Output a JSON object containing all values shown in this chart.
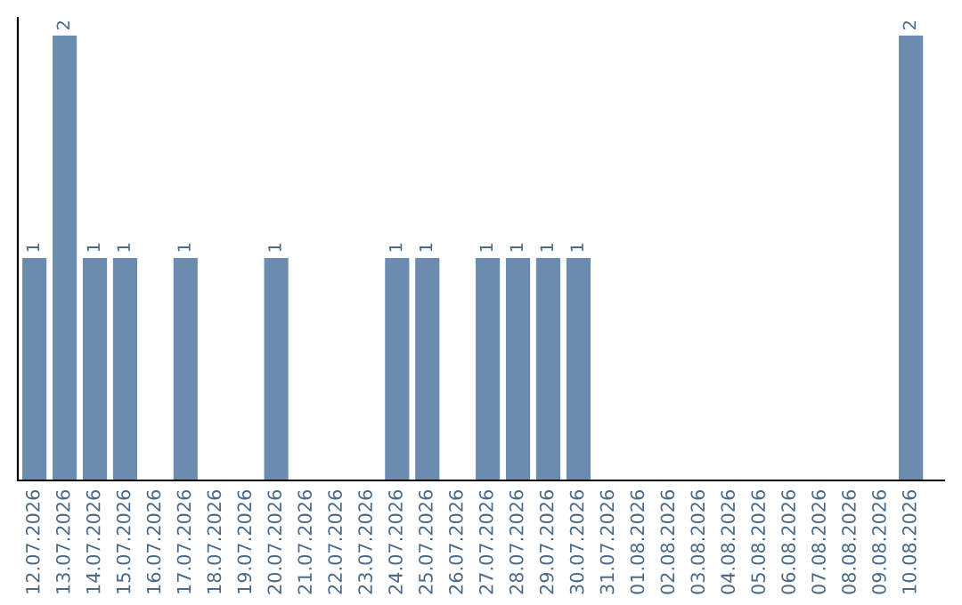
{
  "chart_data": {
    "type": "bar",
    "categories": [
      "12.07.2026",
      "13.07.2026",
      "14.07.2026",
      "15.07.2026",
      "16.07.2026",
      "17.07.2026",
      "18.07.2026",
      "19.07.2026",
      "20.07.2026",
      "21.07.2026",
      "22.07.2026",
      "23.07.2026",
      "24.07.2026",
      "25.07.2026",
      "26.07.2026",
      "27.07.2026",
      "28.07.2026",
      "29.07.2026",
      "30.07.2026",
      "31.07.2026",
      "01.08.2026",
      "02.08.2026",
      "03.08.2026",
      "04.08.2026",
      "05.08.2026",
      "06.08.2026",
      "07.08.2026",
      "08.08.2026",
      "09.08.2026",
      "10.08.2026"
    ],
    "values": [
      1,
      2,
      1,
      1,
      0,
      1,
      0,
      0,
      1,
      0,
      0,
      0,
      1,
      1,
      0,
      1,
      1,
      1,
      1,
      0,
      0,
      0,
      0,
      0,
      0,
      0,
      0,
      0,
      0,
      2
    ],
    "value_labels": [
      "1",
      "2",
      "1",
      "1",
      null,
      "1",
      null,
      null,
      "1",
      null,
      null,
      null,
      "1",
      "1",
      null,
      "1",
      "1",
      "1",
      "1",
      null,
      null,
      null,
      null,
      null,
      null,
      null,
      null,
      null,
      null,
      "2"
    ],
    "color": "#6b8cae",
    "tick_labels": "x",
    "grid": false
  }
}
